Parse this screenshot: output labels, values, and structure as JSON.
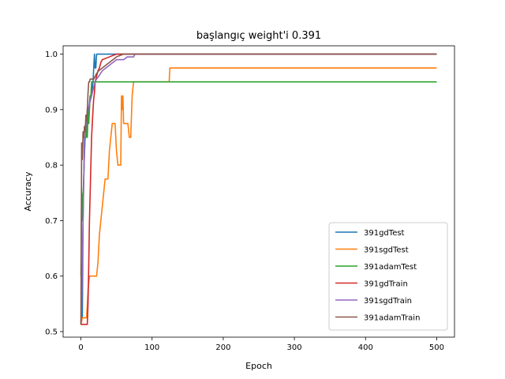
{
  "chart_data": {
    "type": "line",
    "title": "başlangıç weight'i 0.391",
    "xlabel": "Epoch",
    "ylabel": "Accuracy",
    "xlim": [
      -25,
      525
    ],
    "ylim": [
      0.49,
      1.015
    ],
    "xticks": [
      0,
      100,
      200,
      300,
      400,
      500
    ],
    "yticks": [
      0.5,
      0.6,
      0.7,
      0.8,
      0.9,
      1.0
    ],
    "xtick_labels": [
      "0",
      "100",
      "200",
      "300",
      "400",
      "500"
    ],
    "ytick_labels": [
      "0.5",
      "0.6",
      "0.7",
      "0.8",
      "0.9",
      "1.0"
    ],
    "grid": false,
    "legend_position": "lower-right",
    "series": [
      {
        "name": "391gdTest",
        "color": "#1f77b4",
        "x": [
          0,
          2,
          3,
          5,
          7,
          9,
          11,
          13,
          15,
          17,
          18,
          19,
          20,
          21,
          22,
          500
        ],
        "y": [
          0.525,
          0.525,
          0.7,
          0.85,
          0.85,
          0.9,
          0.9,
          0.925,
          0.925,
          0.95,
          0.975,
          1.0,
          0.975,
          0.975,
          1.0,
          1.0
        ]
      },
      {
        "name": "391sgdTest",
        "color": "#ff7f0e",
        "x": [
          0,
          2,
          4,
          6,
          8,
          10,
          12,
          14,
          16,
          18,
          20,
          22,
          24,
          26,
          28,
          30,
          32,
          34,
          36,
          38,
          40,
          42,
          44,
          46,
          48,
          50,
          52,
          54,
          56,
          57,
          58,
          59,
          60,
          62,
          64,
          66,
          68,
          70,
          72,
          74,
          124,
          125,
          500
        ],
        "y": [
          0.512,
          0.525,
          0.525,
          0.525,
          0.525,
          0.575,
          0.6,
          0.6,
          0.6,
          0.6,
          0.6,
          0.6,
          0.625,
          0.675,
          0.7,
          0.725,
          0.75,
          0.775,
          0.775,
          0.775,
          0.825,
          0.85,
          0.875,
          0.875,
          0.875,
          0.825,
          0.8,
          0.8,
          0.8,
          0.925,
          0.9,
          0.925,
          0.875,
          0.875,
          0.875,
          0.875,
          0.85,
          0.85,
          0.925,
          0.95,
          0.95,
          0.975,
          0.975
        ]
      },
      {
        "name": "391adamTest",
        "color": "#2ca02c",
        "x": [
          0,
          1,
          2,
          3,
          4,
          5,
          6,
          7,
          8,
          9,
          10,
          11,
          12,
          13,
          14,
          15,
          16,
          18,
          20,
          500
        ],
        "y": [
          0.6,
          0.75,
          0.7,
          0.75,
          0.775,
          0.825,
          0.85,
          0.85,
          0.875,
          0.85,
          0.9,
          0.875,
          0.9,
          0.925,
          0.925,
          0.95,
          0.95,
          0.95,
          0.95,
          0.95
        ]
      },
      {
        "name": "391gdTrain",
        "color": "#d62728",
        "x": [
          0,
          2,
          4,
          6,
          8,
          9,
          10,
          11,
          12,
          13,
          14,
          15,
          16,
          17,
          18,
          19,
          20,
          22,
          24,
          26,
          28,
          30,
          40,
          50,
          500
        ],
        "y": [
          0.513,
          0.513,
          0.513,
          0.513,
          0.513,
          0.513,
          0.55,
          0.62,
          0.7,
          0.75,
          0.8,
          0.85,
          0.875,
          0.9,
          0.92,
          0.93,
          0.95,
          0.96,
          0.97,
          0.975,
          0.985,
          0.99,
          0.995,
          1.0,
          1.0
        ]
      },
      {
        "name": "391sgdTrain",
        "color": "#9467bd",
        "x": [
          0,
          1,
          2,
          3,
          4,
          5,
          6,
          7,
          8,
          10,
          12,
          14,
          16,
          18,
          20,
          22,
          25,
          30,
          35,
          40,
          45,
          50,
          55,
          60,
          65,
          70,
          74,
          76,
          500
        ],
        "y": [
          0.513,
          0.55,
          0.62,
          0.7,
          0.78,
          0.82,
          0.85,
          0.87,
          0.88,
          0.9,
          0.91,
          0.92,
          0.93,
          0.94,
          0.95,
          0.955,
          0.96,
          0.97,
          0.975,
          0.98,
          0.985,
          0.99,
          0.99,
          0.99,
          0.995,
          0.995,
          0.995,
          1.0,
          1.0
        ]
      },
      {
        "name": "391adamTrain",
        "color": "#8c564b",
        "x": [
          0,
          1,
          2,
          3,
          4,
          5,
          6,
          7,
          8,
          9,
          10,
          11,
          12,
          13,
          14,
          15,
          16,
          18,
          20,
          22,
          25,
          30,
          35,
          40,
          45,
          50,
          60,
          500
        ],
        "y": [
          0.513,
          0.84,
          0.81,
          0.86,
          0.85,
          0.87,
          0.86,
          0.89,
          0.88,
          0.9,
          0.93,
          0.95,
          0.95,
          0.955,
          0.955,
          0.955,
          0.955,
          0.955,
          0.96,
          0.965,
          0.97,
          0.975,
          0.98,
          0.985,
          0.99,
          0.995,
          1.0,
          1.0
        ]
      }
    ]
  }
}
